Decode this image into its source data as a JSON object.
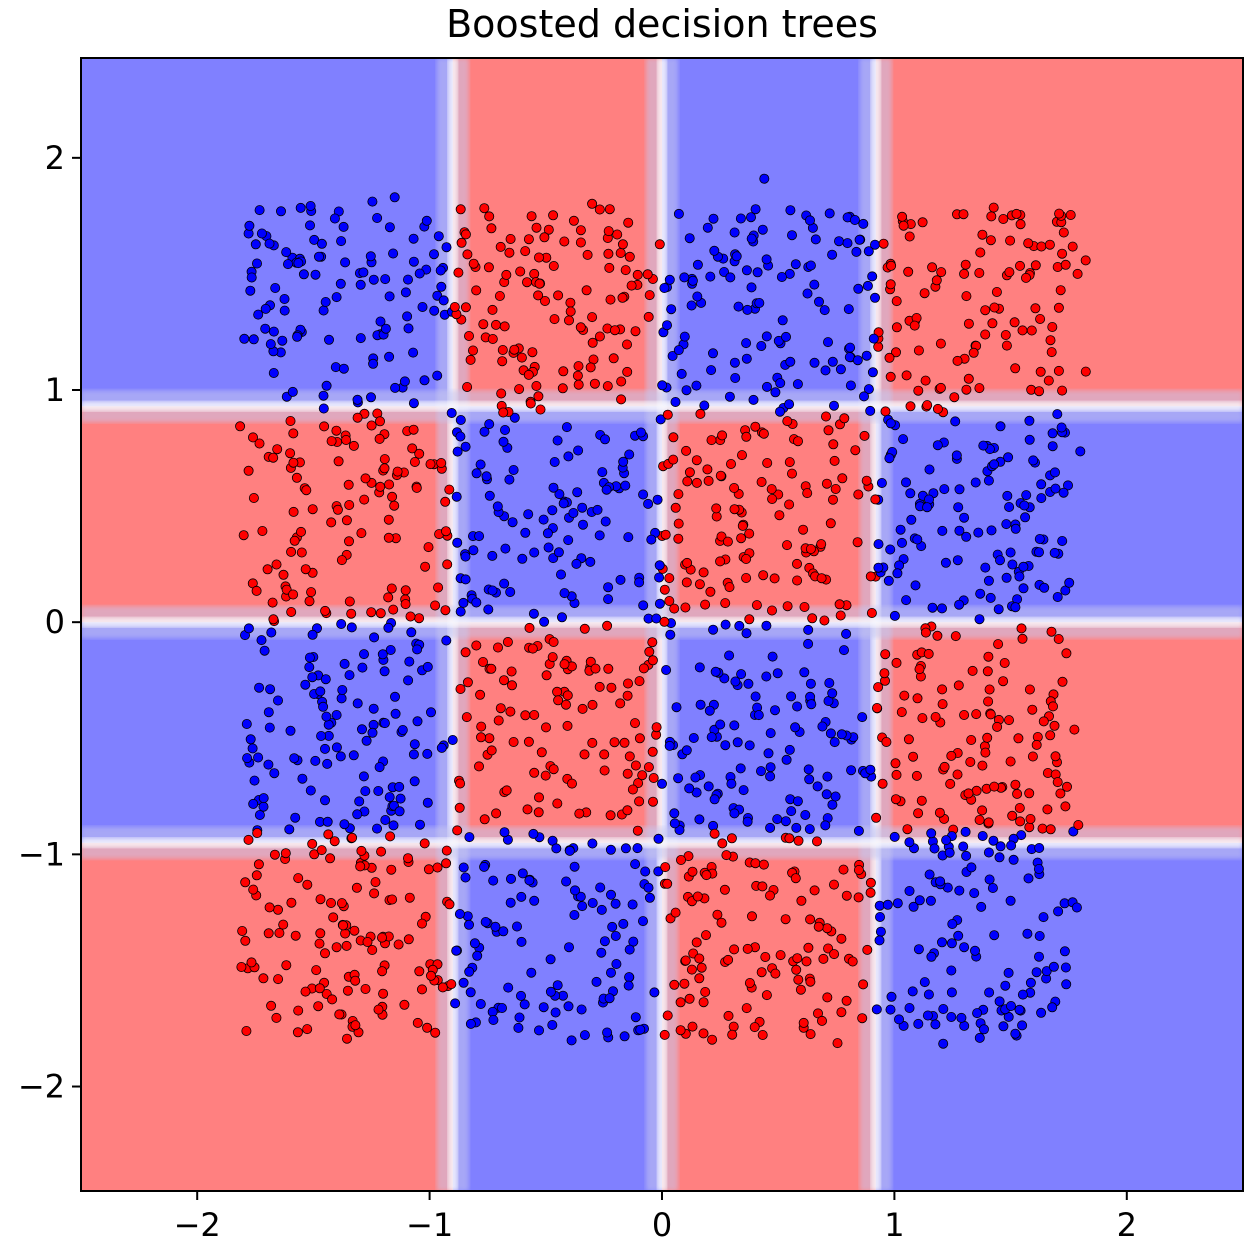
{
  "chart_data": {
    "type": "scatter",
    "title": "Boosted decision trees",
    "xlabel": "",
    "ylabel": "",
    "xlim": [
      -2.5,
      2.5
    ],
    "ylim": [
      -2.45,
      2.43
    ],
    "grid": false,
    "legend": "none",
    "x_ticks": [
      -2,
      -1,
      0,
      1,
      2
    ],
    "y_ticks": [
      -2,
      -1,
      0,
      1,
      2
    ],
    "x_tick_labels": [
      "−2",
      "−1",
      "0",
      "1",
      "2"
    ],
    "y_tick_labels": [
      "−2",
      "−1",
      "0",
      "1",
      "2"
    ],
    "colors": {
      "class_red_point": "#ff0000",
      "class_blue_point": "#0000ff",
      "region_red": "#ff8080",
      "region_blue": "#8080ff",
      "boundary": "#ffffff",
      "point_edge": "#000000"
    },
    "decision_regions": {
      "x_boundaries": [
        -2.5,
        -0.9,
        0.0,
        0.92,
        2.5
      ],
      "y_boundaries": [
        -2.45,
        -0.95,
        0.0,
        0.93,
        2.43
      ],
      "region_class_rows_bottom_to_top": [
        [
          "red",
          "blue",
          "red",
          "blue"
        ],
        [
          "blue",
          "red",
          "blue",
          "red"
        ],
        [
          "red",
          "blue",
          "red",
          "blue"
        ],
        [
          "blue",
          "red",
          "blue",
          "red"
        ]
      ]
    },
    "data_grid": {
      "x_edges": [
        -1.8,
        -0.9,
        0.0,
        0.92,
        1.8
      ],
      "y_edges": [
        -1.8,
        -0.9,
        0.0,
        0.9,
        1.8
      ],
      "rule": "red when (column index + row index) is even, counting from bottom-left"
    },
    "series": [
      {
        "class": "red",
        "color": "#ff0000",
        "count": 1000,
        "points": [
          [
            -0.42,
            -0.3
          ],
          [
            -0.55,
            -0.4
          ],
          [
            -0.3,
            -0.52
          ],
          [
            -0.18,
            -0.35
          ],
          [
            -0.68,
            -0.25
          ],
          [
            -0.48,
            -0.62
          ],
          [
            0.35,
            0.42
          ],
          [
            0.25,
            0.35
          ],
          [
            0.5,
            0.55
          ],
          [
            0.62,
            0.3
          ],
          [
            0.15,
            0.6
          ],
          [
            1.3,
            1.5
          ],
          [
            1.45,
            1.35
          ],
          [
            1.6,
            1.62
          ],
          [
            1.2,
            1.2
          ],
          [
            -1.4,
            0.5
          ],
          [
            -1.55,
            0.3
          ],
          [
            -1.25,
            0.6
          ],
          [
            -0.4,
            1.3
          ],
          [
            -0.55,
            1.5
          ],
          [
            -1.4,
            -1.4
          ],
          [
            -1.2,
            -1.6
          ],
          [
            0.4,
            -1.4
          ],
          [
            0.6,
            -1.2
          ],
          [
            1.3,
            -0.4
          ],
          [
            1.5,
            -0.6
          ]
        ]
      },
      {
        "class": "blue",
        "color": "#0000ff",
        "count": 1000,
        "points": [
          [
            -1.4,
            1.4
          ],
          [
            -1.25,
            1.55
          ],
          [
            -1.55,
            1.25
          ],
          [
            -0.4,
            0.45
          ],
          [
            -0.55,
            0.3
          ],
          [
            -0.25,
            0.6
          ],
          [
            0.4,
            1.35
          ],
          [
            0.55,
            1.5
          ],
          [
            1.3,
            0.45
          ],
          [
            1.5,
            0.3
          ],
          [
            -1.4,
            -0.4
          ],
          [
            -1.2,
            -0.6
          ],
          [
            0.4,
            -0.4
          ],
          [
            0.55,
            -0.55
          ],
          [
            -0.4,
            -1.4
          ],
          [
            -0.55,
            -1.2
          ],
          [
            1.3,
            -1.4
          ],
          [
            1.5,
            -1.2
          ],
          [
            0.44,
            1.91
          ],
          [
            -1.15,
            1.83
          ]
        ]
      }
    ]
  }
}
